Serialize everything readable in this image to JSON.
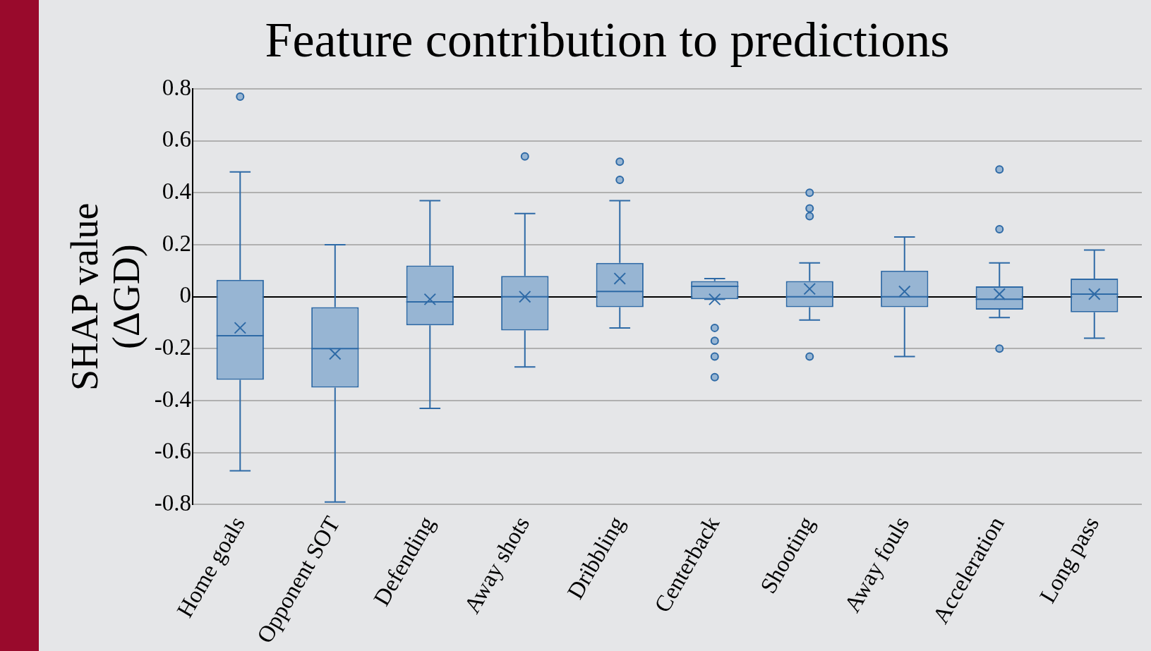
{
  "chart_data": {
    "type": "box",
    "title": "Feature contribution to predictions",
    "ylabel": "SHAP value (ΔGD)",
    "categories": [
      "Home goals",
      "Opponent SOT",
      "Defending",
      "Away shots",
      "Dribbling",
      "Centerback",
      "Shooting",
      "Away fouls",
      "Acceleration",
      "Long pass"
    ],
    "color": "#2e6aa6",
    "boxes": [
      {
        "low": -0.67,
        "q1": -0.32,
        "median": -0.15,
        "q3": 0.065,
        "high": 0.48,
        "mean": -0.12,
        "outliers": [
          0.77
        ]
      },
      {
        "low": -0.79,
        "q1": -0.35,
        "median": -0.2,
        "q3": -0.04,
        "high": 0.2,
        "mean": -0.22
      },
      {
        "low": -0.43,
        "q1": -0.11,
        "median": -0.02,
        "q3": 0.12,
        "high": 0.37,
        "mean": -0.01
      },
      {
        "low": -0.27,
        "q1": -0.13,
        "median": 0,
        "q3": 0.08,
        "high": 0.32,
        "mean": 0,
        "outliers": [
          0.54
        ]
      },
      {
        "low": -0.12,
        "q1": -0.04,
        "median": 0.02,
        "q3": 0.13,
        "high": 0.37,
        "mean": 0.07,
        "outliers": [
          0.52,
          0.45
        ]
      },
      {
        "low": -0.01,
        "q1": -0.01,
        "median": 0.04,
        "q3": 0.06,
        "high": 0.07,
        "mean": -0.01,
        "outliers": [
          -0.12,
          -0.17,
          -0.23,
          -0.31
        ]
      },
      {
        "low": -0.09,
        "q1": -0.04,
        "median": 0,
        "q3": 0.06,
        "high": 0.13,
        "mean": 0.03,
        "outliers": [
          0.4,
          0.34,
          0.31,
          -0.23
        ]
      },
      {
        "low": -0.23,
        "q1": -0.04,
        "median": 0,
        "q3": 0.1,
        "high": 0.23,
        "mean": 0.02
      },
      {
        "low": -0.08,
        "q1": -0.05,
        "median": -0.01,
        "q3": 0.04,
        "high": 0.13,
        "mean": 0.01,
        "outliers": [
          0.49,
          0.26,
          -0.2
        ]
      },
      {
        "low": -0.16,
        "q1": -0.06,
        "median": 0.01,
        "q3": 0.07,
        "high": 0.18,
        "mean": 0.01
      }
    ],
    "ylim": [
      -0.8,
      0.8
    ],
    "yticks": [
      -0.8,
      -0.6,
      -0.4,
      -0.2,
      0,
      0.2,
      0.4,
      0.6,
      0.8
    ],
    "grid": "y",
    "legend": false
  }
}
